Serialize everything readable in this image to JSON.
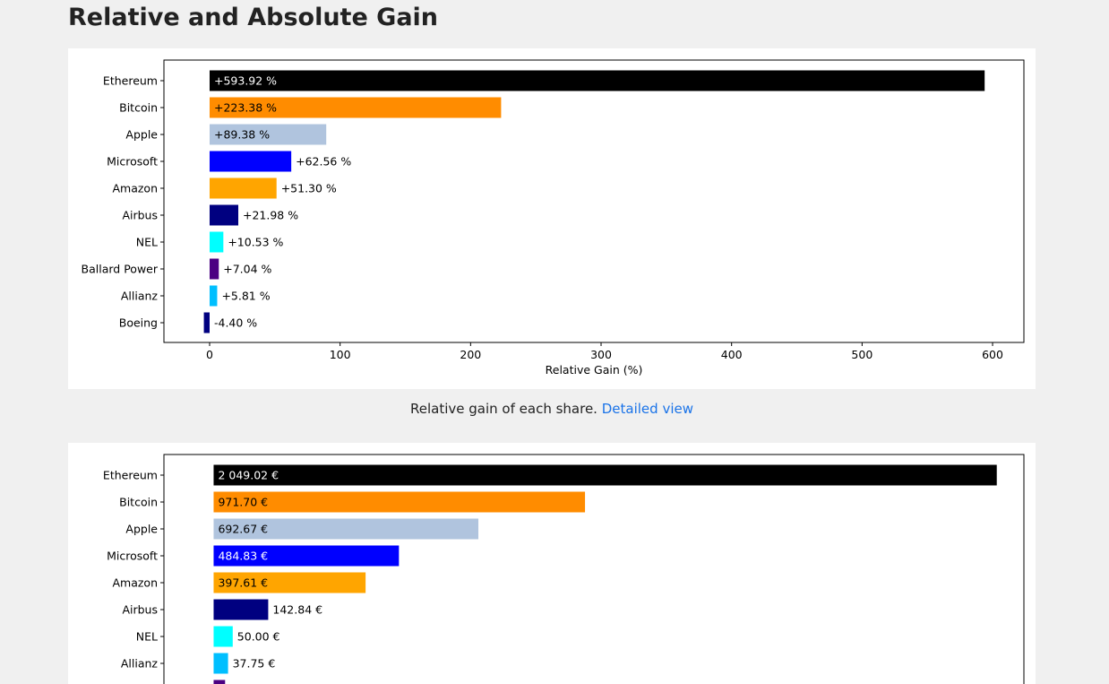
{
  "page": {
    "title": "Relative and Absolute Gain",
    "caption_text": "Relative gain of each share.",
    "caption_link": "Detailed view"
  },
  "chart_data": [
    {
      "type": "bar",
      "orientation": "horizontal",
      "categories": [
        "Ethereum",
        "Bitcoin",
        "Apple",
        "Microsoft",
        "Amazon",
        "Airbus",
        "NEL",
        "Ballard Power",
        "Allianz",
        "Boeing"
      ],
      "values": [
        593.92,
        223.38,
        89.38,
        62.56,
        51.3,
        21.98,
        10.53,
        7.04,
        5.81,
        -4.4
      ],
      "labels": [
        "+593.92 %",
        "+223.38 %",
        "+89.38 %",
        "+62.56 %",
        "+51.30 %",
        "+21.98 %",
        "+10.53 %",
        "+7.04 %",
        "+5.81 %",
        "-4.40 %"
      ],
      "colors": [
        "#000000",
        "#ff8c00",
        "#b0c4de",
        "#0000ff",
        "#ffa500",
        "#000080",
        "#00ffff",
        "#4b0082",
        "#00bfff",
        "#000080"
      ],
      "label_colors": [
        "#ffffff",
        "#000000",
        "#000000",
        null,
        null,
        null,
        null,
        null,
        null,
        null
      ],
      "xlabel": "Relative Gain (%)",
      "xlim": [
        -35,
        624
      ],
      "xticks": [
        0,
        100,
        200,
        300,
        400,
        500,
        600
      ],
      "xtick_labels": [
        "0",
        "100",
        "200",
        "300",
        "400",
        "500",
        "600"
      ]
    },
    {
      "type": "bar",
      "orientation": "horizontal",
      "categories": [
        "Ethereum",
        "Bitcoin",
        "Apple",
        "Microsoft",
        "Amazon",
        "Airbus",
        "NEL",
        "Allianz",
        ""
      ],
      "values": [
        2049.02,
        971.7,
        692.67,
        484.83,
        397.61,
        142.84,
        50.0,
        37.75,
        30
      ],
      "labels": [
        "2 049.02 €",
        "971.70 €",
        "692.67 €",
        "484.83 €",
        "397.61 €",
        "142.84 €",
        "50.00 €",
        "37.75 €",
        ""
      ],
      "colors": [
        "#000000",
        "#ff8c00",
        "#b0c4de",
        "#0000ff",
        "#ffa500",
        "#000080",
        "#00ffff",
        "#00bfff",
        "#4b0082"
      ],
      "label_colors": [
        "#ffffff",
        "#000000",
        "#000000",
        "#ffffff",
        "#000000",
        null,
        null,
        null,
        null
      ],
      "xlim": [
        -130,
        2120
      ]
    }
  ]
}
